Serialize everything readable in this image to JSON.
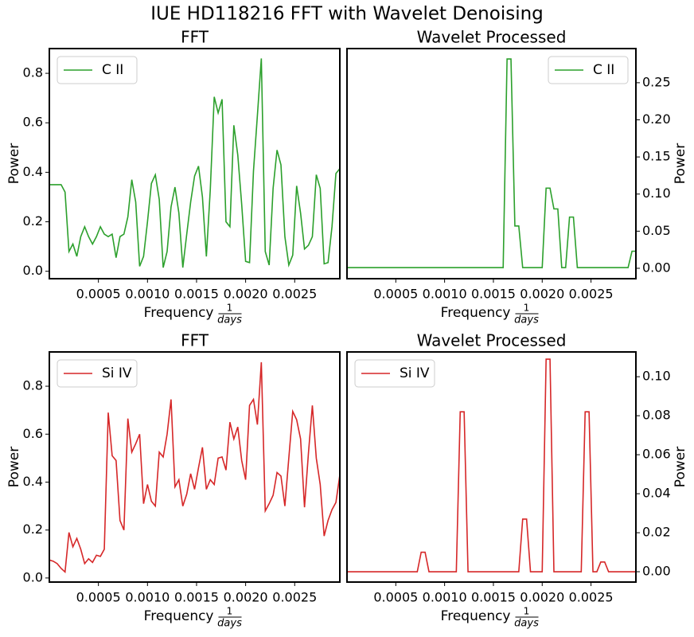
{
  "title": "IUE HD118216 FFT with Wavelet Denoising",
  "chart_data": [
    {
      "type": "line",
      "title": "FFT",
      "xlabel": {
        "text": "Frequency",
        "unit_numerator": "1",
        "unit_denominator": "days"
      },
      "ylabel": "Power",
      "y_axis_side": "left",
      "legend": "upper left",
      "x": [
        0,
        4e-05,
        8e-05,
        0.00012,
        0.00016,
        0.0002,
        0.00024,
        0.00028,
        0.00032,
        0.00036,
        0.0004,
        0.00044,
        0.00048,
        0.00052,
        0.00056,
        0.0006,
        0.00064,
        0.00068,
        0.00072,
        0.00076,
        0.0008,
        0.00084,
        0.00088,
        0.00092,
        0.00096,
        0.001,
        0.00104,
        0.00108,
        0.00112,
        0.00116,
        0.0012,
        0.00124,
        0.00128,
        0.00132,
        0.00136,
        0.0014,
        0.00144,
        0.00148,
        0.00152,
        0.00156,
        0.0016,
        0.00164,
        0.00168,
        0.00172,
        0.00176,
        0.0018,
        0.00184,
        0.00188,
        0.00192,
        0.00196,
        0.002,
        0.00204,
        0.00208,
        0.00212,
        0.00216,
        0.0022,
        0.00224,
        0.00228,
        0.00232,
        0.00236,
        0.0024,
        0.00244,
        0.00248,
        0.00252,
        0.00256,
        0.0026,
        0.00264,
        0.00268,
        0.00272,
        0.00276,
        0.0028,
        0.00284,
        0.00288,
        0.00292,
        0.00296
      ],
      "series": [
        {
          "name": "C II",
          "color": "#2ca02c",
          "values": [
            0.35,
            0.35,
            0.35,
            0.35,
            0.32,
            0.08,
            0.11,
            0.06,
            0.14,
            0.18,
            0.14,
            0.11,
            0.14,
            0.18,
            0.15,
            0.14,
            0.15,
            0.055,
            0.14,
            0.15,
            0.22,
            0.37,
            0.28,
            0.02,
            0.06,
            0.2,
            0.355,
            0.39,
            0.29,
            0.015,
            0.08,
            0.26,
            0.34,
            0.235,
            0.015,
            0.15,
            0.28,
            0.385,
            0.425,
            0.3,
            0.06,
            0.33,
            0.705,
            0.64,
            0.695,
            0.2,
            0.18,
            0.59,
            0.47,
            0.27,
            0.04,
            0.035,
            0.405,
            0.63,
            0.86,
            0.08,
            0.025,
            0.335,
            0.49,
            0.43,
            0.14,
            0.025,
            0.065,
            0.345,
            0.235,
            0.09,
            0.105,
            0.14,
            0.39,
            0.335,
            0.03,
            0.035,
            0.18,
            0.395,
            0.415
          ]
        }
      ],
      "xlim": [
        0,
        0.00296
      ],
      "xticks": [
        0.0005,
        {
          "value": 0.001,
          "label": "0.0010"
        },
        0.0015,
        {
          "value": 0.002,
          "label": "0.0020"
        },
        0.0025
      ],
      "ylim": [
        -0.03,
        0.9
      ],
      "yticks": [
        {
          "value": 0,
          "label": "0.0"
        },
        0.2,
        0.4,
        0.6,
        0.8
      ]
    },
    {
      "type": "line",
      "title": "Wavelet Processed",
      "xlabel": {
        "text": "Frequency",
        "unit_numerator": "1",
        "unit_denominator": "days"
      },
      "ylabel": "Power",
      "y_axis_side": "right",
      "legend": "upper right",
      "x": [
        0,
        4e-05,
        8e-05,
        0.00012,
        0.00016,
        0.0002,
        0.00024,
        0.00028,
        0.00032,
        0.00036,
        0.0004,
        0.00044,
        0.00048,
        0.00052,
        0.00056,
        0.0006,
        0.00064,
        0.00068,
        0.00072,
        0.00076,
        0.0008,
        0.00084,
        0.00088,
        0.00092,
        0.00096,
        0.001,
        0.00104,
        0.00108,
        0.00112,
        0.00116,
        0.0012,
        0.00124,
        0.00128,
        0.00132,
        0.00136,
        0.0014,
        0.00144,
        0.00148,
        0.00152,
        0.00156,
        0.0016,
        0.00164,
        0.00168,
        0.00172,
        0.00176,
        0.0018,
        0.00184,
        0.00188,
        0.00192,
        0.00196,
        0.002,
        0.00204,
        0.00208,
        0.00212,
        0.00216,
        0.0022,
        0.00224,
        0.00228,
        0.00232,
        0.00236,
        0.0024,
        0.00244,
        0.00248,
        0.00252,
        0.00256,
        0.0026,
        0.00264,
        0.00268,
        0.00272,
        0.00276,
        0.0028,
        0.00284,
        0.00288,
        0.00292,
        0.00296
      ],
      "series": [
        {
          "name": "C II",
          "color": "#2ca02c",
          "values": [
            0.001,
            0.001,
            0.001,
            0.001,
            0.001,
            0.001,
            0.001,
            0.001,
            0.001,
            0.001,
            0.001,
            0.001,
            0.001,
            0.001,
            0.001,
            0.001,
            0.001,
            0.001,
            0.001,
            0.001,
            0.001,
            0.001,
            0.001,
            0.001,
            0.001,
            0.001,
            0.001,
            0.001,
            0.001,
            0.001,
            0.001,
            0.001,
            0.001,
            0.001,
            0.001,
            0.001,
            0.001,
            0.001,
            0.001,
            0.001,
            0.001,
            0.282,
            0.282,
            0.057,
            0.057,
            0.001,
            0.001,
            0.001,
            0.001,
            0.001,
            0.001,
            0.108,
            0.108,
            0.08,
            0.08,
            0.001,
            0.001,
            0.069,
            0.069,
            0.001,
            0.001,
            0.001,
            0.001,
            0.001,
            0.001,
            0.001,
            0.001,
            0.001,
            0.001,
            0.001,
            0.001,
            0.001,
            0.001,
            0.023,
            0.023
          ]
        }
      ],
      "xlim": [
        0,
        0.00296
      ],
      "xticks": [
        0.0005,
        {
          "value": 0.001,
          "label": "0.0010"
        },
        0.0015,
        {
          "value": 0.002,
          "label": "0.0020"
        },
        0.0025
      ],
      "ylim": [
        -0.014,
        0.296
      ],
      "yticks": [
        {
          "value": 0,
          "label": "0.00"
        },
        0.05,
        {
          "value": 0.1,
          "label": "0.10"
        },
        0.15,
        {
          "value": 0.2,
          "label": "0.20"
        },
        0.25
      ]
    },
    {
      "type": "line",
      "title": "FFT",
      "xlabel": {
        "text": "Frequency",
        "unit_numerator": "1",
        "unit_denominator": "days"
      },
      "ylabel": "Power",
      "y_axis_side": "left",
      "legend": "upper left",
      "x": [
        0,
        4e-05,
        8e-05,
        0.00012,
        0.00016,
        0.0002,
        0.00024,
        0.00028,
        0.00032,
        0.00036,
        0.0004,
        0.00044,
        0.00048,
        0.00052,
        0.00056,
        0.0006,
        0.00064,
        0.00068,
        0.00072,
        0.00076,
        0.0008,
        0.00084,
        0.00088,
        0.00092,
        0.00096,
        0.001,
        0.00104,
        0.00108,
        0.00112,
        0.00116,
        0.0012,
        0.00124,
        0.00128,
        0.00132,
        0.00136,
        0.0014,
        0.00144,
        0.00148,
        0.00152,
        0.00156,
        0.0016,
        0.00164,
        0.00168,
        0.00172,
        0.00176,
        0.0018,
        0.00184,
        0.00188,
        0.00192,
        0.00196,
        0.002,
        0.00204,
        0.00208,
        0.00212,
        0.00216,
        0.0022,
        0.00224,
        0.00228,
        0.00232,
        0.00236,
        0.0024,
        0.00244,
        0.00248,
        0.00252,
        0.00256,
        0.0026,
        0.00264,
        0.00268,
        0.00272,
        0.00276,
        0.0028,
        0.00284,
        0.00288,
        0.00292,
        0.00296
      ],
      "series": [
        {
          "name": "Si IV",
          "color": "#d62728",
          "values": [
            0.075,
            0.07,
            0.06,
            0.04,
            0.025,
            0.19,
            0.13,
            0.165,
            0.12,
            0.06,
            0.08,
            0.065,
            0.095,
            0.09,
            0.12,
            0.69,
            0.51,
            0.49,
            0.24,
            0.2,
            0.665,
            0.525,
            0.56,
            0.6,
            0.31,
            0.39,
            0.32,
            0.3,
            0.525,
            0.505,
            0.6,
            0.745,
            0.38,
            0.41,
            0.3,
            0.35,
            0.435,
            0.37,
            0.46,
            0.545,
            0.37,
            0.41,
            0.39,
            0.5,
            0.505,
            0.45,
            0.65,
            0.58,
            0.63,
            0.49,
            0.41,
            0.72,
            0.745,
            0.64,
            0.9,
            0.28,
            0.31,
            0.345,
            0.44,
            0.425,
            0.3,
            0.5,
            0.695,
            0.66,
            0.58,
            0.295,
            0.52,
            0.72,
            0.5,
            0.39,
            0.175,
            0.24,
            0.285,
            0.315,
            0.43
          ]
        }
      ],
      "xlim": [
        0,
        0.00296
      ],
      "xticks": [
        0.0005,
        {
          "value": 0.001,
          "label": "0.0010"
        },
        0.0015,
        {
          "value": 0.002,
          "label": "0.0020"
        },
        0.0025
      ],
      "ylim": [
        -0.017,
        0.943
      ],
      "yticks": [
        {
          "value": 0,
          "label": "0.0"
        },
        0.2,
        0.4,
        0.6,
        0.8
      ]
    },
    {
      "type": "line",
      "title": "Wavelet Processed",
      "xlabel": {
        "text": "Frequency",
        "unit_numerator": "1",
        "unit_denominator": "days"
      },
      "ylabel": "Power",
      "y_axis_side": "right",
      "legend": "upper left",
      "x": [
        0,
        4e-05,
        8e-05,
        0.00012,
        0.00016,
        0.0002,
        0.00024,
        0.00028,
        0.00032,
        0.00036,
        0.0004,
        0.00044,
        0.00048,
        0.00052,
        0.00056,
        0.0006,
        0.00064,
        0.00068,
        0.00072,
        0.00076,
        0.0008,
        0.00084,
        0.00088,
        0.00092,
        0.00096,
        0.001,
        0.00104,
        0.00108,
        0.00112,
        0.00116,
        0.0012,
        0.00124,
        0.00128,
        0.00132,
        0.00136,
        0.0014,
        0.00144,
        0.00148,
        0.00152,
        0.00156,
        0.0016,
        0.00164,
        0.00168,
        0.00172,
        0.00176,
        0.0018,
        0.00184,
        0.00188,
        0.00192,
        0.00196,
        0.002,
        0.00204,
        0.00208,
        0.00212,
        0.00216,
        0.0022,
        0.00224,
        0.00228,
        0.00232,
        0.00236,
        0.0024,
        0.00244,
        0.00248,
        0.00252,
        0.00256,
        0.0026,
        0.00264,
        0.00268,
        0.00272,
        0.00276,
        0.0028,
        0.00284,
        0.00288,
        0.00292,
        0.00296
      ],
      "series": [
        {
          "name": "Si IV",
          "color": "#d62728",
          "values": [
            0,
            0,
            0,
            0,
            0,
            0,
            0,
            0,
            0,
            0,
            0,
            0,
            0,
            0,
            0,
            0,
            0,
            0,
            0,
            0.01,
            0.01,
            0,
            0,
            0,
            0,
            0,
            0,
            0,
            0,
            0.082,
            0.082,
            0,
            0,
            0,
            0,
            0,
            0,
            0,
            0,
            0,
            0,
            0,
            0,
            0,
            0,
            0.027,
            0.027,
            0,
            0,
            0,
            0,
            0.109,
            0.109,
            0,
            0,
            0,
            0,
            0,
            0,
            0,
            0,
            0.082,
            0.082,
            0,
            0,
            0.005,
            0.005,
            0,
            0,
            0,
            0,
            0,
            0,
            0,
            0
          ]
        }
      ],
      "xlim": [
        0,
        0.00296
      ],
      "xticks": [
        0.0005,
        {
          "value": 0.001,
          "label": "0.0010"
        },
        0.0015,
        {
          "value": 0.002,
          "label": "0.0020"
        },
        0.0025
      ],
      "ylim": [
        -0.0053,
        0.1127
      ],
      "yticks": [
        {
          "value": 0,
          "label": "0.00"
        },
        0.02,
        0.04,
        0.06,
        0.08,
        {
          "value": 0.1,
          "label": "0.10"
        }
      ]
    }
  ]
}
